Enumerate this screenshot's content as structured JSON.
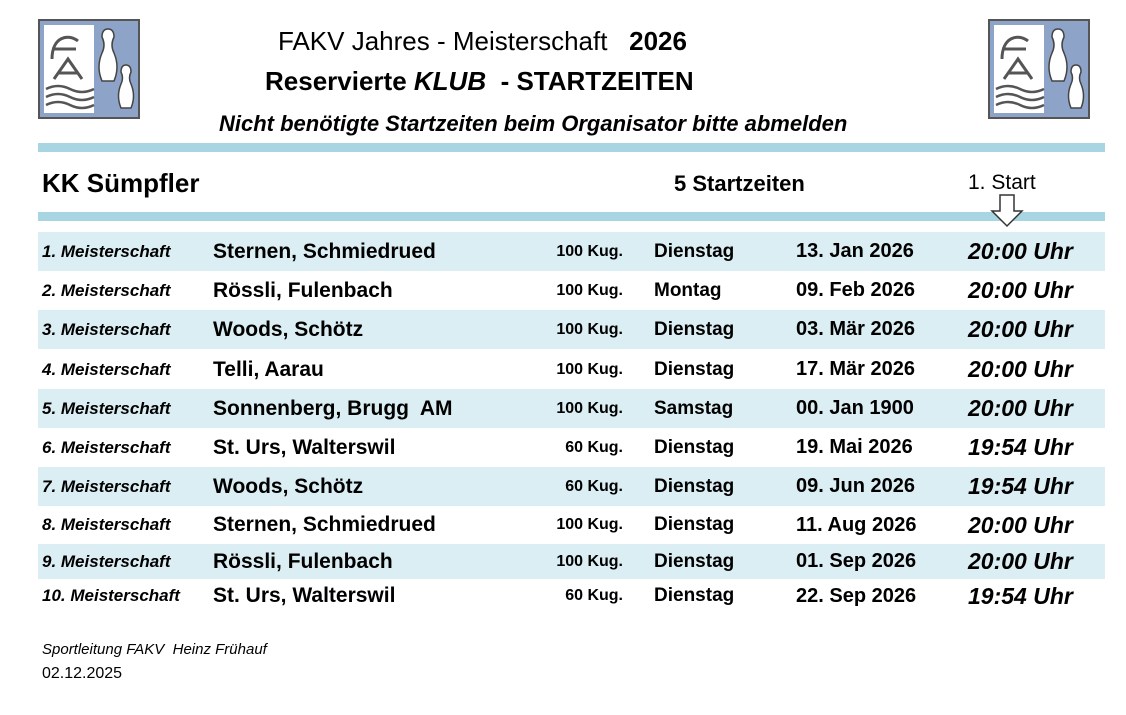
{
  "header": {
    "line1": {
      "text": "FAKV Jahres - Meisterschaft",
      "year": "2026"
    },
    "line2": {
      "prefix": "Reservierte",
      "emphasis": "KLUB",
      "suffix": "- STARTZEITEN"
    },
    "line3": "Nicht benötigte Startzeiten beim Organisator bitte abmelden"
  },
  "club": {
    "name": "KK Sümpfler",
    "count": "5 Startzeiten",
    "start_label": "1. Start"
  },
  "table": {
    "rows": [
      [
        "1. Meisterschaft",
        "Sternen, Schmiedrued",
        "100 Kug.",
        "Dienstag",
        "13. Jan 2026",
        "20:00 Uhr"
      ],
      [
        "2. Meisterschaft",
        "Rössli, Fulenbach",
        "100 Kug.",
        "Montag",
        "09. Feb 2026",
        "20:00 Uhr"
      ],
      [
        "3. Meisterschaft",
        "Woods, Schötz",
        "100 Kug.",
        "Dienstag",
        "03. Mär 2026",
        "20:00 Uhr"
      ],
      [
        "4. Meisterschaft",
        "Telli, Aarau",
        "100 Kug.",
        "Dienstag",
        "17. Mär 2026",
        "20:00 Uhr"
      ],
      [
        "5. Meisterschaft",
        "Sonnenberg, Brugg  AM",
        "100 Kug.",
        "Samstag",
        "00. Jan 1900",
        "20:00 Uhr"
      ],
      [
        "6. Meisterschaft",
        "St. Urs, Walterswil",
        "60 Kug.",
        "Dienstag",
        "19. Mai 2026",
        "19:54 Uhr"
      ],
      [
        "7. Meisterschaft",
        "Woods, Schötz",
        "60 Kug.",
        "Dienstag",
        "09. Jun 2026",
        "19:54 Uhr"
      ],
      [
        "8. Meisterschaft",
        "Sternen, Schmiedrued",
        "100 Kug.",
        "Dienstag",
        "11. Aug 2026",
        "20:00 Uhr"
      ],
      [
        "9. Meisterschaft",
        "Rössli, Fulenbach",
        "100 Kug.",
        "Dienstag",
        "01. Sep 2026",
        "20:00 Uhr"
      ],
      [
        "10. Meisterschaft",
        "St. Urs, Walterswil",
        "60 Kug.",
        "Dienstag",
        "22. Sep 2026",
        "19:54 Uhr"
      ]
    ]
  },
  "footer": {
    "signature": "Sportleitung FAKV  Heinz Frühauf",
    "date": "02.12.2025"
  }
}
